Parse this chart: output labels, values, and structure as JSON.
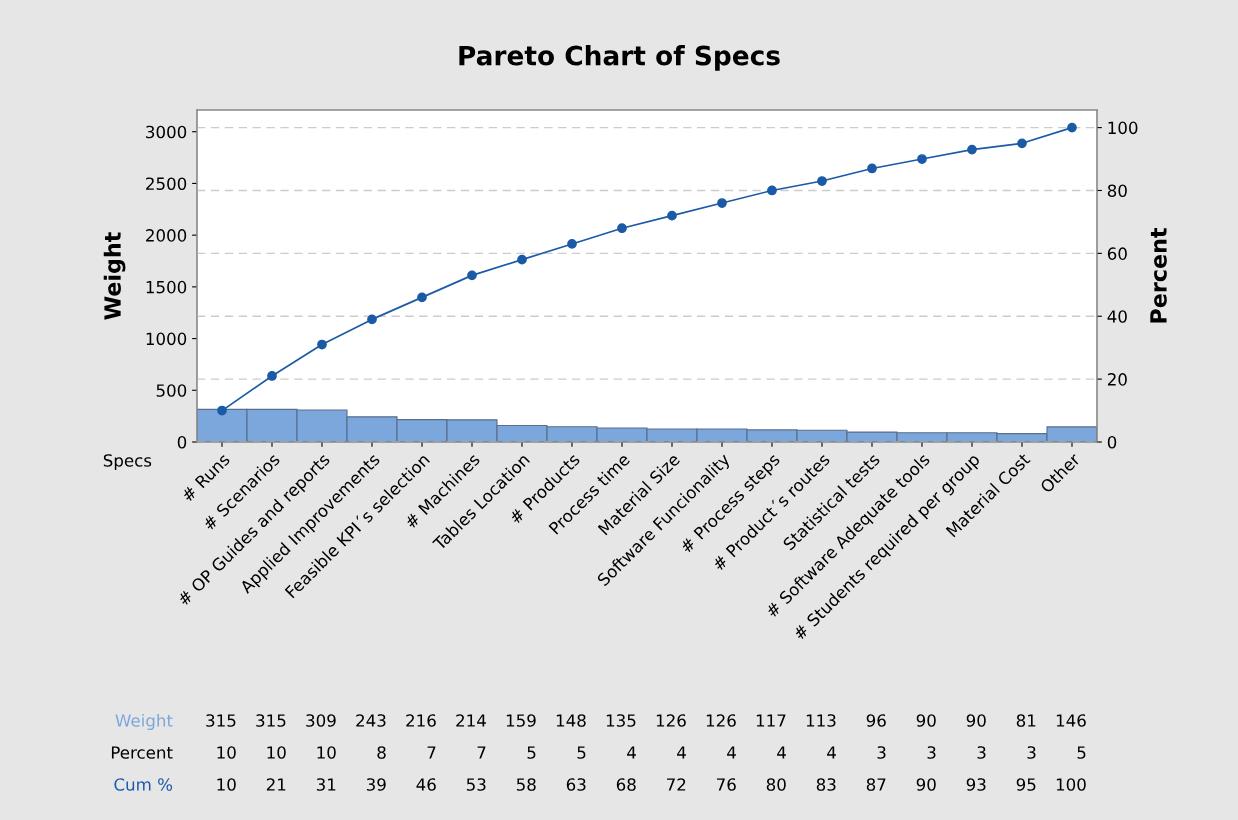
{
  "chart_data": {
    "type": "bar",
    "title": "Pareto Chart of Specs",
    "xlabel": "Specs",
    "ylabel": "Weight",
    "y2label": "Percent",
    "categories": [
      "# Runs",
      "# Scenarios",
      "# OP Guides and reports",
      "Applied Improvements",
      "Feasible KPI´s selection",
      "# Machines",
      "Tables Location",
      "# Products",
      "Process time",
      "Material Size",
      "Software Funcionality",
      "# Process steps",
      "# Product´s routes",
      "Statistical tests",
      "# Software Adequate tools",
      "# Students required per group",
      "Material Cost",
      "Other"
    ],
    "series": [
      {
        "name": "Weight",
        "color": "#7ba7dd",
        "values": [
          315,
          315,
          309,
          243,
          216,
          214,
          159,
          148,
          135,
          126,
          126,
          117,
          113,
          96,
          90,
          90,
          81,
          146
        ]
      },
      {
        "name": "Cum %",
        "type": "line",
        "axis": "y2",
        "color": "#1a5aa6",
        "values": [
          10,
          21,
          31,
          39,
          46,
          53,
          58,
          63,
          68,
          72,
          76,
          80,
          83,
          87,
          90,
          93,
          95,
          100
        ]
      }
    ],
    "annotations": [
      "Percent",
      "10",
      "10",
      "10",
      "8",
      "7",
      "7",
      "5",
      "5",
      "4",
      "4",
      "4",
      "4",
      "4",
      "3",
      "3",
      "3",
      "3",
      "5"
    ],
    "ylim": [
      0,
      3210
    ],
    "yticks": [
      0,
      500,
      1000,
      1500,
      2000,
      2500,
      3000
    ],
    "y2lim": [
      0,
      105.6
    ],
    "y2ticks": [
      0,
      20,
      40,
      60,
      80,
      100
    ],
    "grid": "y",
    "marker": "circle",
    "line_style": "solid",
    "data_labels": true
  }
}
